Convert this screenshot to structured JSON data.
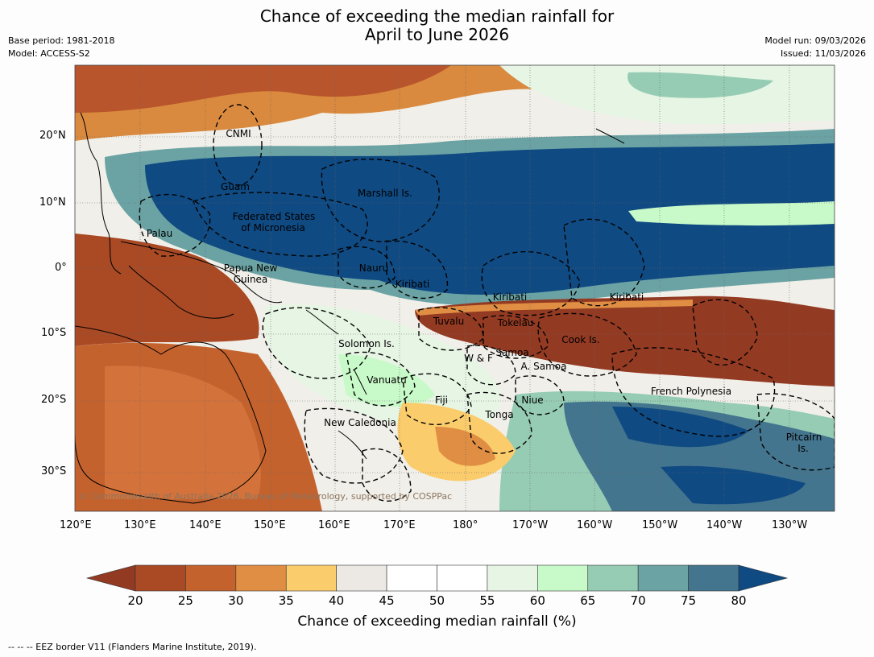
{
  "title": {
    "line1": "Chance of exceeding the median rainfall for",
    "line2": "April to June 2026"
  },
  "meta": {
    "base_period": "Base period: 1981-2018",
    "model": "Model: ACCESS-S2",
    "model_run": "Model run: 09/03/2026",
    "issued": "Issued: 11/03/2026"
  },
  "map": {
    "lat_ticks": [
      "20°N",
      "10°N",
      "0°",
      "10°S",
      "20°S",
      "30°S"
    ],
    "lon_ticks": [
      "120°E",
      "130°E",
      "140°E",
      "150°E",
      "160°E",
      "170°E",
      "180°",
      "170°W",
      "160°W",
      "150°W",
      "140°W",
      "130°W"
    ],
    "regions": {
      "cnmi": "CNMI",
      "guam": "Guam",
      "marshall": "Marshall Is.",
      "fsm1": "Federated States",
      "fsm2": "of Micronesia",
      "palau": "Palau",
      "png1": "Papua New",
      "png2": "Guinea",
      "nauru": "Nauru",
      "kiribati1": "Kiribati",
      "kiribati2": "Kiribati",
      "kiribati3": "Kiribati",
      "tuvalu": "Tuvalu",
      "tokelau": "Tokelau",
      "cook": "Cook Is.",
      "solomon": "Solomon Is.",
      "wf": "W & F",
      "samoa": "Samoa",
      "asamoa": "A. Samoa",
      "vanuatu": "Vanuatu",
      "fiji": "Fiji",
      "niue": "Niue",
      "tonga": "Tonga",
      "newcal": "New Caledonia",
      "frpoly": "French Polynesia",
      "pitcairn1": "Pitcairn",
      "pitcairn2": "Is."
    },
    "copyright": "© Commonwealth of Australia 2026, Bureau of Meteorology, supported by COSPPac"
  },
  "colorbar": {
    "labels": [
      "20",
      "25",
      "30",
      "35",
      "40",
      "45",
      "50",
      "55",
      "60",
      "65",
      "70",
      "75",
      "80"
    ],
    "colors": [
      "#a94a25",
      "#c4622e",
      "#e08e43",
      "#fbcc6b",
      "#ece9e4",
      "#ffffff",
      "#ffffff",
      "#e6f5e4",
      "#c8f9c8",
      "#96ccb4",
      "#6ba3a4",
      "#44758e"
    ],
    "low_color": "#933a23",
    "high_color": "#0f4a82",
    "title": "Chance of exceeding median rainfall (%)"
  },
  "footnote": "--  --  -- EEZ border V11 (Flanders Marine Institute, 2019)."
}
